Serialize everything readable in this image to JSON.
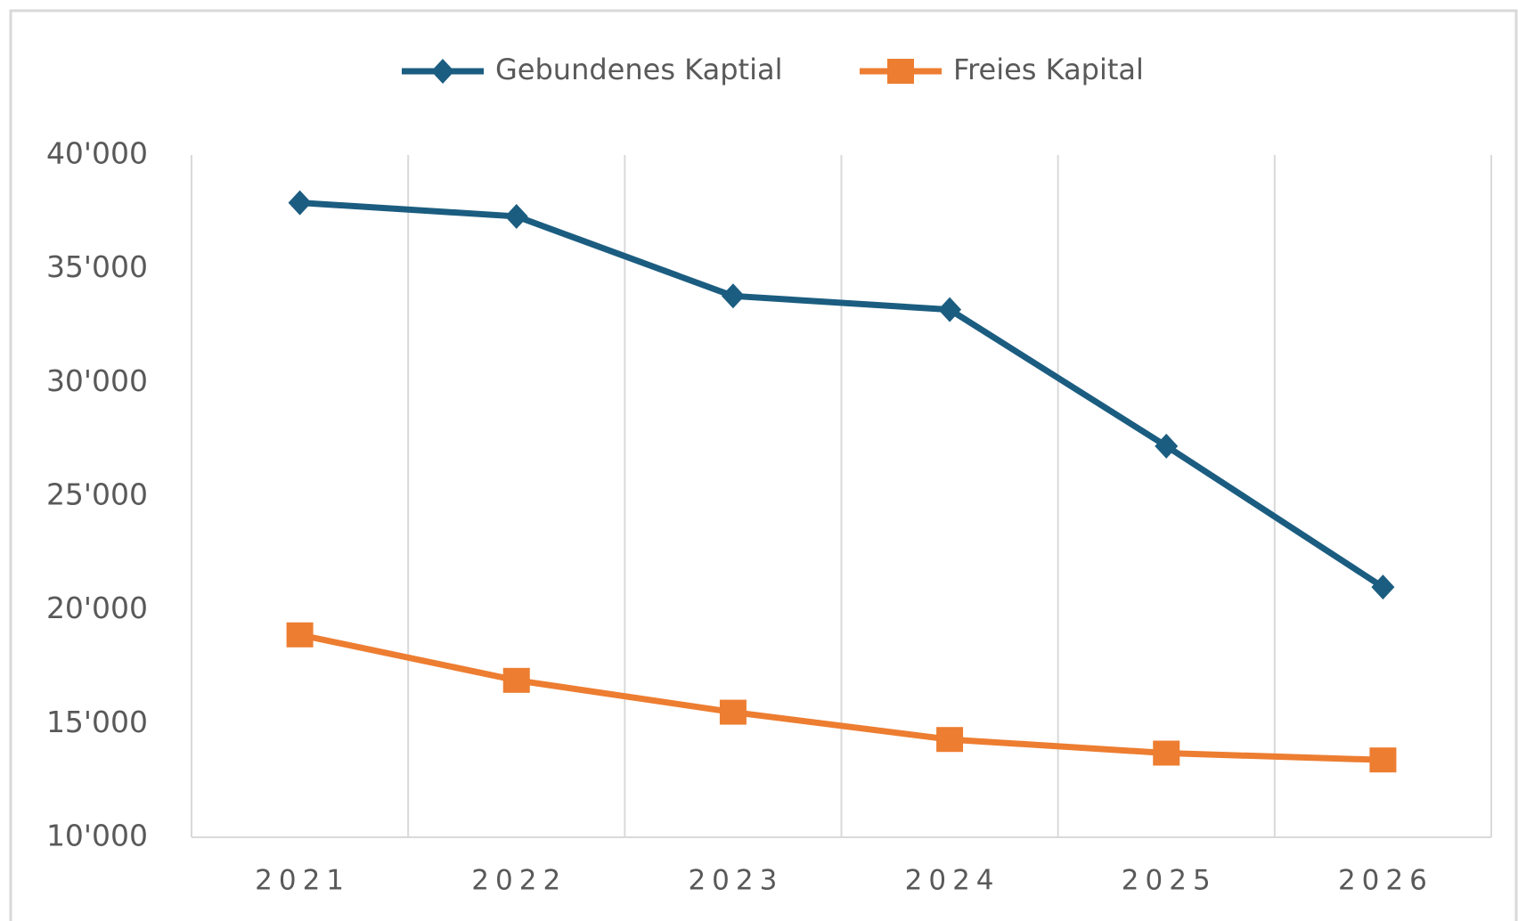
{
  "chart_data": {
    "type": "line",
    "categories": [
      "2021",
      "2022",
      "2023",
      "2024",
      "2025",
      "2026"
    ],
    "series": [
      {
        "name": "Gebundenes Kaptial",
        "color": "#1b5d80",
        "marker": "diamond",
        "values": [
          37900,
          37300,
          33800,
          33200,
          27200,
          21000
        ]
      },
      {
        "name": "Freies Kapital",
        "color": "#ed7d31",
        "marker": "square",
        "values": [
          18900,
          16900,
          15500,
          14300,
          13700,
          13400
        ]
      }
    ],
    "ylim": [
      10000,
      40000
    ],
    "yticks": [
      {
        "value": 10000,
        "label": "10'000"
      },
      {
        "value": 15000,
        "label": "15'000"
      },
      {
        "value": 20000,
        "label": "20'000"
      },
      {
        "value": 25000,
        "label": "25'000"
      },
      {
        "value": 30000,
        "label": "30'000"
      },
      {
        "value": 35000,
        "label": "35'000"
      },
      {
        "value": 40000,
        "label": "40'000"
      }
    ],
    "grid": "vertical",
    "legend": "top"
  }
}
